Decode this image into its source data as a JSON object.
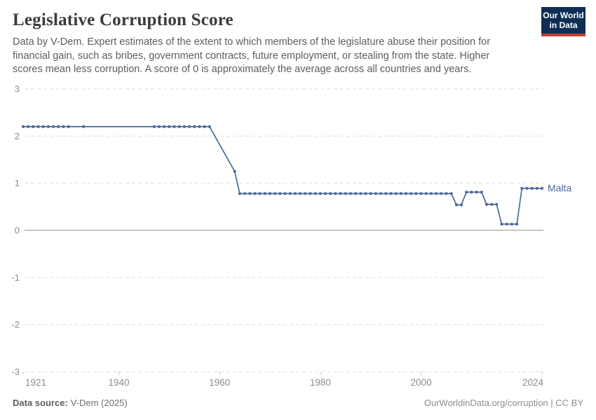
{
  "header": {
    "title": "Legislative Corruption Score",
    "subtitle": "Data by V-Dem. Expert estimates of the extent to which members of the legislature abuse their position for financial gain, such as bribes, government contracts, future employment, or stealing from the state. Higher scores mean less corruption. A score of 0 is approximately the average across all countries and years.",
    "logo": {
      "line1": "Our World",
      "line2": "in Data"
    }
  },
  "footer": {
    "source_label": "Data source:",
    "source_value": "V-Dem (2025)",
    "credit": "OurWorldinData.org/corruption | CC BY"
  },
  "colors": {
    "line": "#4c6a9c",
    "grid": "#dfdfdf",
    "zero_line": "#a8a8a8",
    "tick": "#c9c9c9",
    "axis_text": "#8c8c8c",
    "logo_bg": "#0f2e55",
    "logo_stripe": "#cf3a31"
  },
  "chart_data": {
    "type": "line",
    "title": "Legislative Corruption Score",
    "xlabel": "",
    "ylabel": "",
    "xlim": [
      1921,
      2024
    ],
    "ylim": [
      -3,
      3
    ],
    "x_ticks": [
      1921,
      1940,
      1960,
      1980,
      2000,
      2024
    ],
    "y_ticks": [
      3,
      2,
      1,
      0,
      -1,
      -2,
      -3
    ],
    "grid": "dashed-horizontal",
    "legend_position": "end-of-line-label",
    "series": [
      {
        "name": "Malta",
        "color": "#4c6a9c",
        "points": [
          [
            1921,
            2.2
          ],
          [
            1922,
            2.2
          ],
          [
            1923,
            2.2
          ],
          [
            1924,
            2.2
          ],
          [
            1925,
            2.2
          ],
          [
            1926,
            2.2
          ],
          [
            1927,
            2.2
          ],
          [
            1928,
            2.2
          ],
          [
            1929,
            2.2
          ],
          [
            1930,
            2.2
          ],
          [
            1933,
            2.2
          ],
          [
            1947,
            2.2
          ],
          [
            1948,
            2.2
          ],
          [
            1949,
            2.2
          ],
          [
            1950,
            2.2
          ],
          [
            1951,
            2.2
          ],
          [
            1952,
            2.2
          ],
          [
            1953,
            2.2
          ],
          [
            1954,
            2.2
          ],
          [
            1955,
            2.2
          ],
          [
            1956,
            2.2
          ],
          [
            1957,
            2.2
          ],
          [
            1958,
            2.2
          ],
          [
            1963,
            1.25
          ],
          [
            1964,
            0.78
          ],
          [
            1965,
            0.78
          ],
          [
            1966,
            0.78
          ],
          [
            1967,
            0.78
          ],
          [
            1968,
            0.78
          ],
          [
            1969,
            0.78
          ],
          [
            1970,
            0.78
          ],
          [
            1971,
            0.78
          ],
          [
            1972,
            0.78
          ],
          [
            1973,
            0.78
          ],
          [
            1974,
            0.78
          ],
          [
            1975,
            0.78
          ],
          [
            1976,
            0.78
          ],
          [
            1977,
            0.78
          ],
          [
            1978,
            0.78
          ],
          [
            1979,
            0.78
          ],
          [
            1980,
            0.78
          ],
          [
            1981,
            0.78
          ],
          [
            1982,
            0.78
          ],
          [
            1983,
            0.78
          ],
          [
            1984,
            0.78
          ],
          [
            1985,
            0.78
          ],
          [
            1986,
            0.78
          ],
          [
            1987,
            0.78
          ],
          [
            1988,
            0.78
          ],
          [
            1989,
            0.78
          ],
          [
            1990,
            0.78
          ],
          [
            1991,
            0.78
          ],
          [
            1992,
            0.78
          ],
          [
            1993,
            0.78
          ],
          [
            1994,
            0.78
          ],
          [
            1995,
            0.78
          ],
          [
            1996,
            0.78
          ],
          [
            1997,
            0.78
          ],
          [
            1998,
            0.78
          ],
          [
            1999,
            0.78
          ],
          [
            2000,
            0.78
          ],
          [
            2001,
            0.78
          ],
          [
            2002,
            0.78
          ],
          [
            2003,
            0.78
          ],
          [
            2004,
            0.78
          ],
          [
            2005,
            0.78
          ],
          [
            2006,
            0.78
          ],
          [
            2007,
            0.54
          ],
          [
            2008,
            0.54
          ],
          [
            2009,
            0.81
          ],
          [
            2010,
            0.81
          ],
          [
            2011,
            0.81
          ],
          [
            2012,
            0.81
          ],
          [
            2013,
            0.55
          ],
          [
            2014,
            0.55
          ],
          [
            2015,
            0.55
          ],
          [
            2016,
            0.13
          ],
          [
            2017,
            0.13
          ],
          [
            2018,
            0.13
          ],
          [
            2019,
            0.13
          ],
          [
            2020,
            0.89
          ],
          [
            2021,
            0.89
          ],
          [
            2022,
            0.89
          ],
          [
            2023,
            0.89
          ],
          [
            2024,
            0.89
          ]
        ]
      }
    ]
  }
}
